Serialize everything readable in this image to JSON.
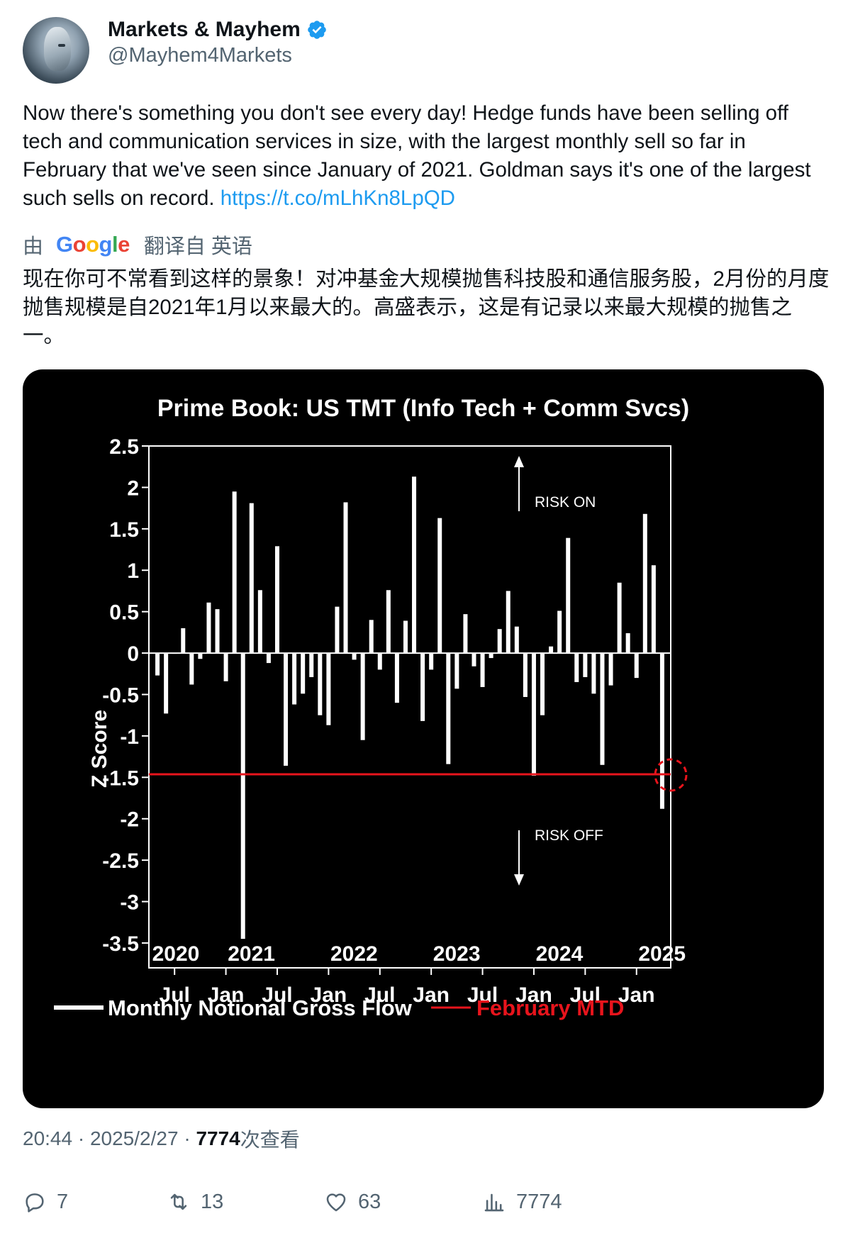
{
  "author": {
    "name": "Markets & Mayhem",
    "handle": "@Mayhem4Markets",
    "verified": true
  },
  "tweet": {
    "text": "Now there's something you don't see every day! Hedge funds have been selling off tech and communication services in size, with the largest monthly sell so far in February that we've seen since January of 2021. Goldman says it's one of the largest such sells on record.",
    "link": "https://t.co/mLhKn8LpQD"
  },
  "translation": {
    "by": "由",
    "provider": "Google",
    "label": "翻译自 英语",
    "text": "现在你可不常看到这样的景象！对冲基金大规模抛售科技股和通信服务股，2月份的月度抛售规模是自2021年1月以来最大的。高盛表示，这是有记录以来最大规模的抛售之一。"
  },
  "meta": {
    "time": "20:44",
    "date": "2025/2/27",
    "separator": "·",
    "views": "7774",
    "views_label": "次查看"
  },
  "actions": {
    "replies": "7",
    "retweets": "13",
    "likes": "63",
    "views": "7774"
  },
  "colors": {
    "link": "#1d9bf0",
    "muted": "#536471",
    "verified": "#1d9bf0",
    "chart_bg": "#000000",
    "bar": "#ffffff",
    "mtd_line": "#e8141c"
  },
  "chart_data": {
    "type": "bar",
    "title": "Prime Book: US TMT (Info Tech + Comm Svcs)",
    "ylabel": "Z Score",
    "ylim": [
      -3.8,
      2.5
    ],
    "yticks": [
      "2.5",
      "2",
      "1.5",
      "1",
      "0.5",
      "0",
      "-0.5",
      "-1",
      "-1.5",
      "-2",
      "-2.5",
      "-3",
      "-3.5"
    ],
    "ytick_values": [
      2.5,
      2,
      1.5,
      1,
      0.5,
      0,
      -0.5,
      -1,
      -1.5,
      -2,
      -2.5,
      -3,
      -3.5
    ],
    "year_labels": [
      "2020",
      "2021",
      "2022",
      "2023",
      "2024",
      "2025"
    ],
    "month_labels": [
      "Jul",
      "Jan",
      "Jul",
      "Jan",
      "Jul",
      "Jan",
      "Jul",
      "Jan",
      "Jul",
      "Jan"
    ],
    "annotations": {
      "risk_on": "RISK ON",
      "risk_off": "RISK OFF"
    },
    "series": [
      {
        "name": "Monthly Notional Gross Flow",
        "values": [
          -0.27,
          -0.73,
          0.0,
          0.3,
          -0.38,
          -0.07,
          0.61,
          0.53,
          -0.34,
          1.95,
          -3.45,
          1.81,
          0.76,
          -0.12,
          1.29,
          -1.36,
          -0.62,
          -0.49,
          -0.29,
          -0.75,
          -0.87,
          0.56,
          1.82,
          -0.08,
          -1.05,
          0.4,
          -0.2,
          0.76,
          -0.6,
          0.39,
          2.13,
          -0.82,
          -0.2,
          1.63,
          -1.34,
          -0.43,
          0.47,
          -0.16,
          -0.41,
          -0.06,
          0.29,
          0.75,
          0.32,
          -0.53,
          -1.48,
          -0.75,
          0.08,
          0.51,
          1.39,
          -0.35,
          -0.29,
          -0.49,
          -1.35,
          -0.39,
          0.85,
          0.24,
          -0.3,
          1.68,
          1.06,
          -1.88
        ]
      },
      {
        "name": "February MTD",
        "values": [
          -1.9
        ]
      }
    ]
  }
}
